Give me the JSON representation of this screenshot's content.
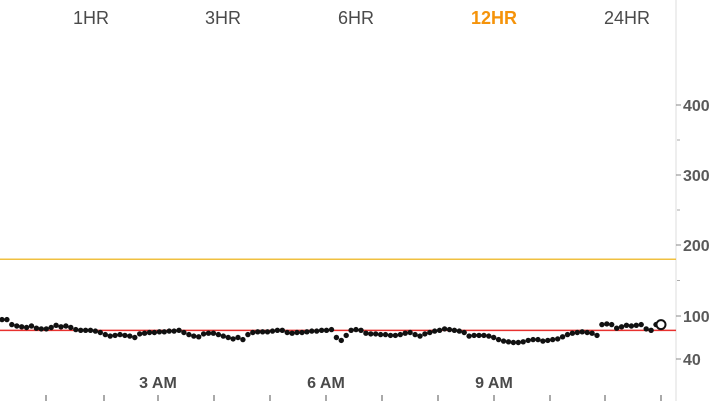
{
  "range_tabs": [
    {
      "label": "1HR",
      "active": false
    },
    {
      "label": "3HR",
      "active": false
    },
    {
      "label": "6HR",
      "active": false
    },
    {
      "label": "12HR",
      "active": true
    },
    {
      "label": "24HR",
      "active": false
    }
  ],
  "colors": {
    "active_tab": "#f5930a",
    "high_threshold_line": "#f0c040",
    "low_threshold_line": "#e8312f",
    "data_point": "#111111",
    "axis_text": "#5a5a5a"
  },
  "chart_data": {
    "type": "scatter",
    "ylabel": "",
    "xlabel": "",
    "y_ticks": [
      40,
      100,
      200,
      300,
      400
    ],
    "x_ticks": [
      "3 AM",
      "6 AM",
      "9 AM"
    ],
    "thresholds": {
      "high": 180,
      "low": 80
    },
    "current_value": 88,
    "points_note": "",
    "series": [
      {
        "values": [
          95,
          95,
          88,
          86,
          85,
          84,
          86,
          83,
          82,
          82,
          84,
          87,
          85,
          86,
          84,
          81,
          80,
          80,
          80,
          79,
          77,
          74,
          72,
          73,
          74,
          73,
          72,
          70,
          75,
          76,
          77,
          77,
          78,
          78,
          79,
          79,
          80,
          77,
          74,
          72,
          71,
          75,
          76,
          76,
          74,
          72,
          70,
          68,
          70,
          67,
          74,
          77,
          78,
          78,
          78,
          79,
          80,
          80,
          77,
          76,
          77,
          77,
          78,
          79,
          79,
          80,
          80,
          81,
          70,
          66,
          73,
          80,
          81,
          80,
          76,
          75,
          75,
          74,
          74,
          73,
          73,
          74,
          76,
          77,
          74,
          72,
          75,
          77,
          79,
          80,
          82,
          81,
          80,
          79,
          77,
          72,
          73,
          73,
          73,
          72,
          70,
          67,
          65,
          64,
          63,
          63,
          64,
          66,
          67,
          67,
          65,
          66,
          67,
          68,
          71,
          74,
          76,
          77,
          78,
          77,
          76,
          73,
          88,
          89,
          88,
          83,
          85,
          87,
          86,
          87,
          88,
          82,
          80,
          88
        ]
      }
    ]
  }
}
